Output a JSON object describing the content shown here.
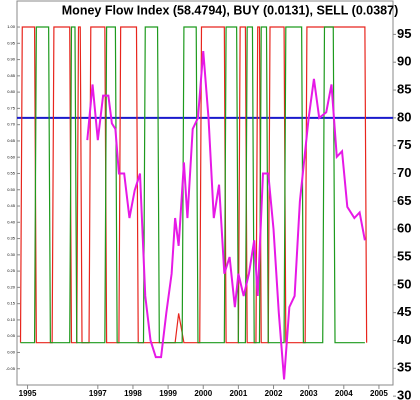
{
  "chart_data": {
    "type": "line",
    "title": "Money Flow Index (58.4794), BUY (0.0131), SELL (0.0387)",
    "xlim": [
      1994.7,
      2005.4
    ],
    "xticks": [
      1995,
      1997,
      1998,
      1999,
      2000,
      2001,
      2002,
      2003,
      2004,
      2005
    ],
    "ylim": [
      -0.1,
      1.08
    ],
    "yticks": [
      {
        "value": -0.05,
        "label": "-0.05"
      },
      {
        "value": 0,
        "label": "0.00"
      },
      {
        "value": 0.05,
        "label": "0.05"
      },
      {
        "value": 0.1,
        "label": "0.10"
      },
      {
        "value": 0.15,
        "label": "0.15"
      },
      {
        "value": 0.2,
        "label": "0.20"
      },
      {
        "value": 0.25,
        "label": "0.25"
      },
      {
        "value": 0.3,
        "label": "0.30"
      },
      {
        "value": 0.35,
        "label": "0.35"
      },
      {
        "value": 0.4,
        "label": "0.40"
      },
      {
        "value": 0.45,
        "label": "0.45"
      },
      {
        "value": 0.5,
        "label": "0.50"
      },
      {
        "value": 0.55,
        "label": "0.55"
      },
      {
        "value": 0.6,
        "label": "0.60"
      },
      {
        "value": 0.65,
        "label": "0.65"
      },
      {
        "value": 0.7,
        "label": "0.70"
      },
      {
        "value": 0.75,
        "label": "0.75"
      },
      {
        "value": 0.8,
        "label": "0.80"
      },
      {
        "value": 0.85,
        "label": "0.85"
      },
      {
        "value": 0.9,
        "label": "0.90"
      },
      {
        "value": 0.95,
        "label": "0.95"
      },
      {
        "value": 1,
        "label": "1.00"
      }
    ],
    "y2lim": [
      32,
      101
    ],
    "y2ticks": [
      30,
      35,
      40,
      45,
      50,
      55,
      60,
      65,
      70,
      75,
      80,
      85,
      90,
      95
    ],
    "reference_line": {
      "value": 80,
      "color": "#1a1acc",
      "axis": "y2"
    },
    "series": [
      {
        "name": "SELL",
        "color": "#e8251d",
        "axis": "y",
        "x": [
          1994.8,
          1994.85,
          1995.2,
          1995.25,
          1995.7,
          1995.75,
          1996.2,
          1996.25,
          1996.4,
          1996.45,
          1996.5,
          1996.55,
          1996.75,
          1996.8,
          1997.2,
          1997.25,
          1997.6,
          1997.65,
          1998.1,
          1998.15,
          1999.2,
          1999.3,
          1999.45,
          1999.9,
          1999.95,
          2000.6,
          2000.65,
          2001.0,
          2001.05,
          2001.2,
          2001.25,
          2001.5,
          2001.55,
          2001.6,
          2001.65,
          2001.85,
          2001.9,
          2002.3,
          2002.35,
          2002.9,
          2002.95,
          2004.6,
          2004.65
        ],
        "values": [
          0.03,
          1,
          1,
          0.03,
          0.03,
          1,
          1,
          0.03,
          0.03,
          1,
          1,
          0.03,
          0.03,
          1,
          1,
          0.03,
          0.03,
          1,
          1,
          0.03,
          0.03,
          0.12,
          0.03,
          0.03,
          1,
          1,
          0.03,
          0.03,
          1,
          1,
          0.03,
          0.03,
          1,
          1,
          0.03,
          0.03,
          1,
          1,
          0.03,
          0.03,
          1,
          1,
          0.03
        ]
      },
      {
        "name": "BUY",
        "color": "#1d9a1d",
        "axis": "y",
        "x": [
          1994.8,
          1995.2,
          1995.25,
          1995.6,
          1995.65,
          1996.2,
          1996.25,
          1996.35,
          1996.4,
          1997.2,
          1997.25,
          1997.5,
          1997.55,
          1998.3,
          1998.35,
          1998.7,
          1998.75,
          1999.4,
          1999.45,
          1999.8,
          1999.85,
          2000.6,
          2000.65,
          2000.95,
          2001.0,
          2001.2,
          2001.25,
          2001.4,
          2001.45,
          2001.6,
          2001.65,
          2001.8,
          2001.85,
          2002.3,
          2002.35,
          2002.8,
          2002.85,
          2003.4,
          2003.45,
          2003.7,
          2003.75,
          2004.6
        ],
        "values": [
          0.03,
          0.03,
          1,
          1,
          0.03,
          0.03,
          1,
          1,
          0.03,
          0.03,
          1,
          1,
          0.03,
          0.03,
          1,
          1,
          0.03,
          0.03,
          1,
          1,
          0.03,
          0.03,
          1,
          1,
          0.03,
          0.03,
          1,
          1,
          0.03,
          0.03,
          1,
          1,
          0.03,
          0.03,
          1,
          1,
          0.03,
          0.03,
          1,
          1,
          0.03,
          0.03
        ]
      },
      {
        "name": "Money Flow Index",
        "color": "#e619e6",
        "axis": "y2",
        "x": [
          1996.7,
          1996.85,
          1997.0,
          1997.15,
          1997.3,
          1997.4,
          1997.5,
          1997.6,
          1997.75,
          1997.9,
          1998.05,
          1998.2,
          1998.35,
          1998.5,
          1998.65,
          1998.8,
          1998.95,
          1999.1,
          1999.2,
          1999.3,
          1999.45,
          1999.55,
          1999.7,
          1999.85,
          2000.0,
          2000.15,
          2000.3,
          2000.45,
          2000.6,
          2000.75,
          2000.9,
          2001.0,
          2001.15,
          2001.3,
          2001.45,
          2001.55,
          2001.7,
          2001.85,
          2002.0,
          2002.15,
          2002.3,
          2002.45,
          2002.6,
          2002.75,
          2003.0,
          2003.15,
          2003.3,
          2003.5,
          2003.65,
          2003.8,
          2003.95,
          2004.1,
          2004.3,
          2004.45,
          2004.6
        ],
        "values": [
          76,
          86,
          76,
          84,
          84,
          79,
          78,
          70,
          70,
          62,
          67,
          70,
          48,
          40,
          37,
          37,
          45,
          52,
          62,
          57,
          72,
          62,
          78,
          80,
          92,
          80,
          62,
          68,
          52,
          55,
          46,
          52,
          48,
          52,
          58,
          48,
          70,
          70,
          60,
          45,
          33,
          46,
          48,
          65,
          80,
          87,
          80,
          81,
          86,
          73,
          74,
          64,
          62,
          63,
          58
        ]
      }
    ]
  }
}
